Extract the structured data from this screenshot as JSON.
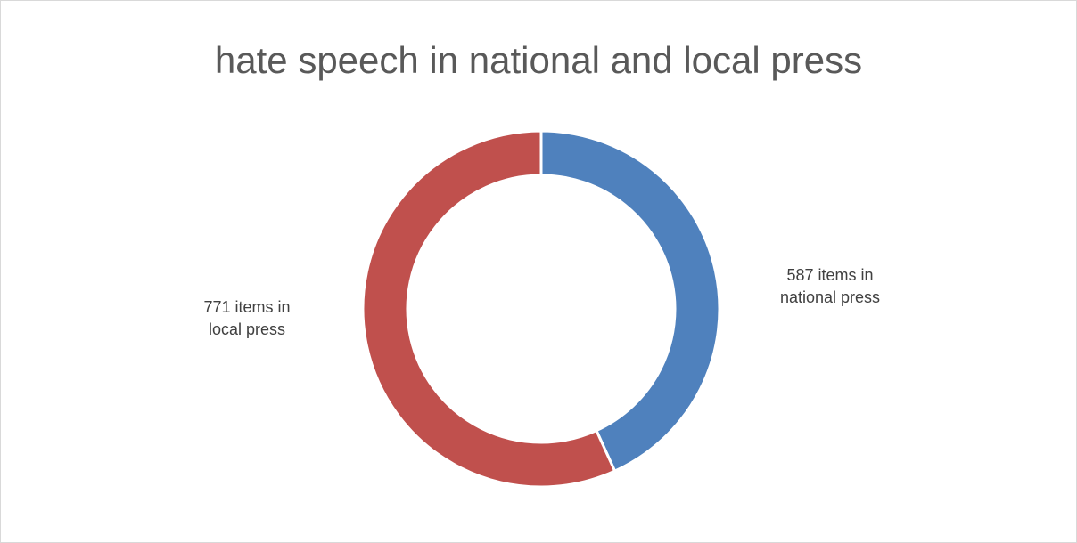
{
  "chart_data": {
    "type": "pie",
    "title": "hate speech in national and local press",
    "categories": [
      "national press",
      "local press"
    ],
    "values": [
      587,
      771
    ],
    "colors": [
      "#4f81bd",
      "#c0504d"
    ],
    "data_labels": [
      {
        "line1": "587 items in",
        "line2": "national press"
      },
      {
        "line1": "771 items in",
        "line2": "local press"
      }
    ],
    "legend": "none"
  }
}
